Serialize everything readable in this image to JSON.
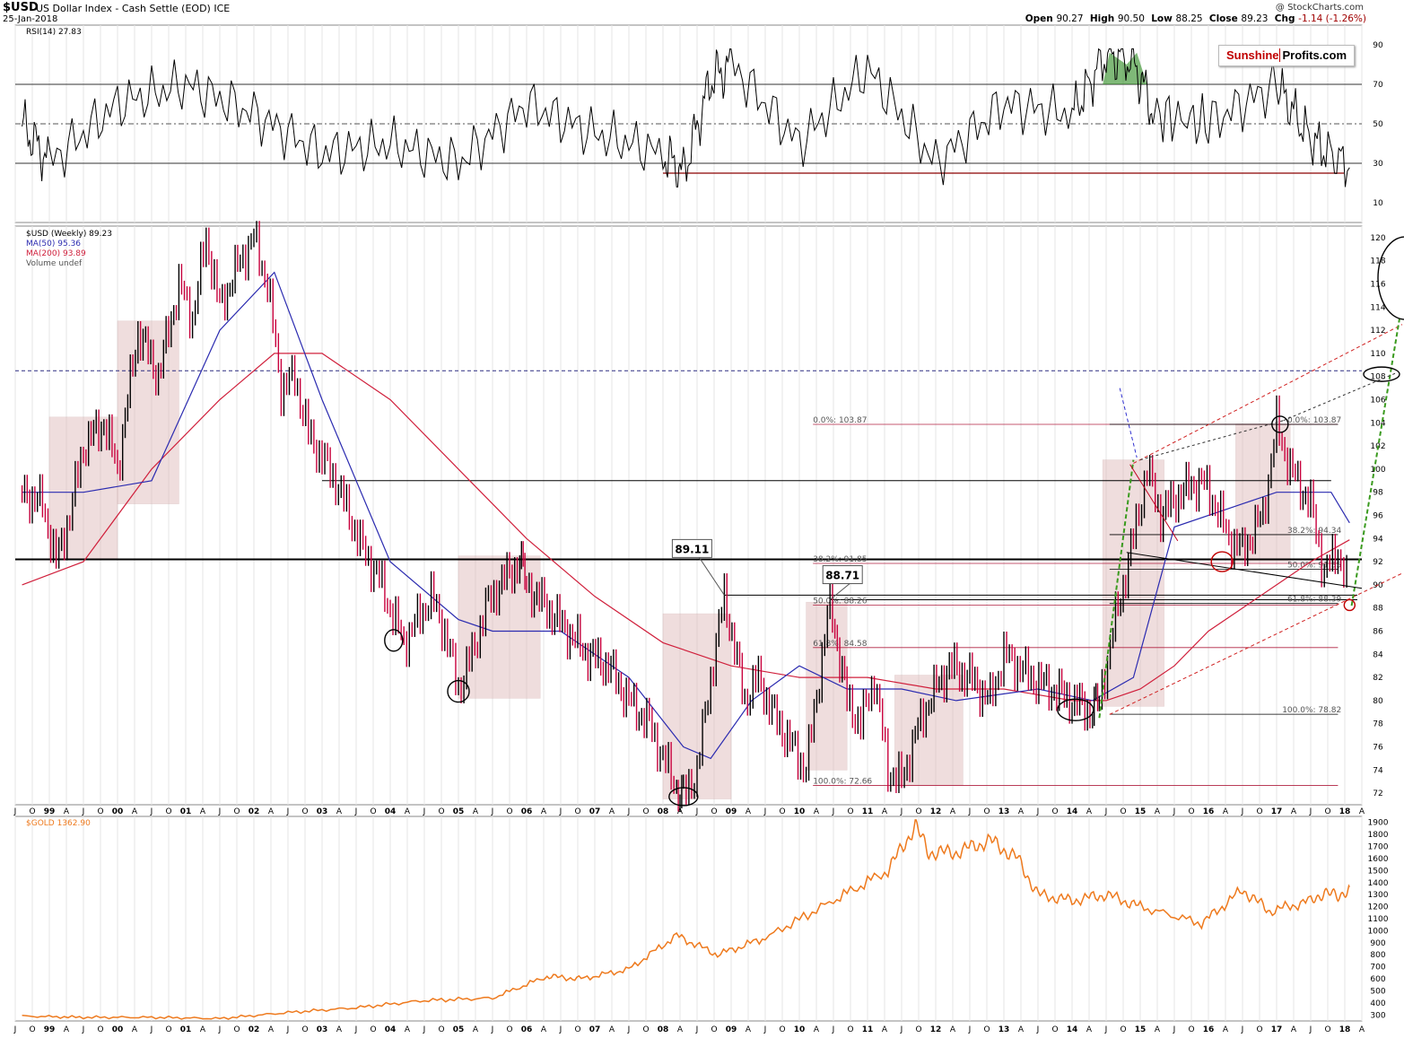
{
  "header": {
    "symbol": "$USD",
    "name": "US Dollar Index - Cash Settle (EOD) ICE",
    "date": "25-Jan-2018",
    "copyright": "@ StockCharts.com",
    "open_label": "Open",
    "open": "90.27",
    "high_label": "High",
    "high": "90.50",
    "low_label": "Low",
    "low": "88.25",
    "close_label": "Close",
    "close": "89.23",
    "chg_label": "Chg",
    "chg": "-1.14 (-1.26%)"
  },
  "logo": {
    "part1": "Sunshine",
    "part2": "Profits.com"
  },
  "colors": {
    "price_up": "#000000",
    "price_down": "#c8003c",
    "ma50": "#2b2bb0",
    "ma200": "#d0203c",
    "gold": "#ee7a1e",
    "box": "#dcb4b4",
    "green": "#2a8a1e"
  },
  "chart_data": [
    {
      "type": "line",
      "title": "RSI(14) 27.83",
      "panel": "rsi",
      "ylim": [
        0,
        100
      ],
      "yticks": [
        10,
        30,
        50,
        70,
        90
      ],
      "guide_lines": [
        70,
        50,
        30
      ],
      "support_line": 25,
      "x_years": [
        1998.6,
        1999.0,
        2000.0,
        2001.0,
        2002.0,
        2003.0,
        2004.0,
        2005.0,
        2006.0,
        2007.0,
        2008.0,
        2008.3,
        2008.7,
        2009.0,
        2010.0,
        2011.0,
        2012.0,
        2013.0,
        2014.0,
        2014.5,
        2014.9,
        2015.2,
        2016.0,
        2017.0,
        2017.5,
        2018.07
      ],
      "values": [
        50,
        30,
        60,
        70,
        55,
        35,
        40,
        30,
        60,
        45,
        35,
        25,
        72,
        80,
        40,
        78,
        30,
        60,
        55,
        85,
        82,
        55,
        50,
        70,
        42,
        27.83
      ]
    },
    {
      "type": "line",
      "title": "$USD (Weekly) 89.23",
      "panel": "price",
      "ylim": [
        71,
        121
      ],
      "yticks": [
        72,
        74,
        76,
        78,
        80,
        82,
        84,
        86,
        88,
        90,
        92,
        94,
        96,
        98,
        100,
        102,
        104,
        106,
        108,
        110,
        112,
        114,
        116,
        118,
        120
      ],
      "series": [
        {
          "name": "$USD (Weekly) 89.23",
          "x_years": [
            1998.6,
            1998.9,
            1999.1,
            1999.3,
            1999.5,
            1999.8,
            2000.0,
            2000.3,
            2000.6,
            2000.9,
            2001.1,
            2001.3,
            2001.5,
            2001.8,
            2002.0,
            2002.2,
            2002.4,
            2002.6,
            2002.8,
            2003.0,
            2003.2,
            2003.4,
            2003.6,
            2003.8,
            2004.0,
            2004.2,
            2004.4,
            2004.6,
            2004.8,
            2005.0,
            2005.2,
            2005.4,
            2005.6,
            2005.9,
            2006.0,
            2006.3,
            2006.6,
            2006.9,
            2007.2,
            2007.5,
            2007.8,
            2008.0,
            2008.2,
            2008.3,
            2008.5,
            2008.7,
            2008.9,
            2009.2,
            2009.4,
            2009.6,
            2009.9,
            2010.1,
            2010.45,
            2010.7,
            2010.9,
            2011.1,
            2011.3,
            2011.5,
            2011.7,
            2011.9,
            2012.2,
            2012.5,
            2012.8,
            2013.0,
            2013.4,
            2013.7,
            2014.0,
            2014.3,
            2014.4,
            2014.6,
            2014.9,
            2015.1,
            2015.3,
            2015.6,
            2015.9,
            2016.1,
            2016.3,
            2016.5,
            2016.8,
            2017.0,
            2017.2,
            2017.5,
            2017.7,
            2017.9,
            2018.07
          ],
          "values": [
            98,
            97,
            92,
            96,
            102,
            104,
            100,
            112,
            108,
            116,
            113,
            120,
            114,
            118,
            120,
            116,
            107,
            108,
            103,
            101,
            99,
            96,
            93,
            91,
            88,
            85,
            87,
            89,
            86,
            81,
            84,
            88,
            90,
            92,
            90,
            88,
            86,
            84,
            83,
            80,
            78,
            75,
            72.66,
            71.5,
            74,
            82,
            89.11,
            80,
            82,
            79,
            76,
            74,
            88.71,
            80,
            78,
            82,
            74,
            73,
            77,
            80,
            83,
            82,
            80,
            84,
            82,
            81,
            80,
            79,
            80,
            86,
            94,
            100,
            96,
            98,
            99,
            97,
            94,
            93,
            96,
            103.87,
            100,
            97,
            91,
            93,
            89.23
          ]
        },
        {
          "name": "MA(50) 95.36",
          "x_years": [
            1998.6,
            1999.5,
            2000.5,
            2001.5,
            2002.3,
            2003.0,
            2004.0,
            2005.0,
            2005.5,
            2006.5,
            2007.5,
            2008.3,
            2008.7,
            2009.3,
            2010.0,
            2010.7,
            2011.5,
            2012.3,
            2013.5,
            2014.3,
            2014.9,
            2015.5,
            2016.5,
            2017.0,
            2017.5,
            2017.8,
            2018.07
          ],
          "values": [
            98,
            98,
            99,
            112,
            117,
            106,
            92,
            87,
            86,
            86,
            82,
            76,
            75,
            80,
            83,
            81,
            81,
            80,
            81,
            80,
            82,
            95,
            97,
            98,
            98,
            98,
            95.36
          ]
        },
        {
          "name": "MA(200) 93.89",
          "x_years": [
            1998.6,
            1999.5,
            2000.5,
            2001.5,
            2002.3,
            2003.0,
            2004.0,
            2005.0,
            2006.0,
            2007.0,
            2008.0,
            2009.0,
            2010.0,
            2011.0,
            2012.0,
            2013.0,
            2014.0,
            2014.5,
            2015.0,
            2015.5,
            2016.0,
            2016.5,
            2017.0,
            2017.5,
            2018.07
          ],
          "values": [
            90,
            92,
            100,
            106,
            110,
            110,
            106,
            100,
            94,
            89,
            85,
            83,
            82,
            82,
            81,
            81,
            80,
            80,
            81,
            83,
            86,
            88,
            90,
            92,
            93.89
          ]
        }
      ],
      "legend": [
        "$USD (Weekly) 89.23",
        "MA(50) 95.36",
        "MA(200) 93.89",
        "Volume undef"
      ],
      "annotations": [
        {
          "text": "89.11",
          "x_year": 2008.9,
          "y": 89.11
        },
        {
          "text": "88.71",
          "x_year": 2010.45,
          "y": 88.71
        }
      ],
      "fib_left": [
        {
          "label": "0.0%: 103.87",
          "y": 103.87
        },
        {
          "label": "38.2%: 91.85",
          "y": 91.85
        },
        {
          "label": "50.0%: 88.26",
          "y": 88.26
        },
        {
          "label": "61.8%: 84.58",
          "y": 84.58
        },
        {
          "label": "100.0%: 72.66",
          "y": 72.66
        }
      ],
      "fib_right": [
        {
          "label": "0.0%: 103.87",
          "y": 103.87
        },
        {
          "label": "38.2%: 94.34",
          "y": 94.34
        },
        {
          "label": "50.0%: 91.35",
          "y": 91.35
        },
        {
          "label": "61.8%: 88.39",
          "y": 88.39
        },
        {
          "label": "100.0%: 78.82",
          "y": 78.82
        }
      ],
      "horizontal_lines": [
        92.2,
        108.5,
        99.0
      ]
    },
    {
      "type": "line",
      "title": "$GOLD 1362.90",
      "panel": "gold",
      "ylim": [
        250,
        1950
      ],
      "yticks": [
        300,
        400,
        500,
        600,
        700,
        800,
        900,
        1000,
        1100,
        1200,
        1300,
        1400,
        1500,
        1600,
        1700,
        1800,
        1900
      ],
      "x_years": [
        1998.6,
        1999.5,
        2000.5,
        2001.5,
        2002.5,
        2003.5,
        2004.5,
        2005.5,
        2006.3,
        2006.8,
        2007.5,
        2008.2,
        2008.8,
        2009.5,
        2010.5,
        2011.3,
        2011.7,
        2011.9,
        2012.3,
        2012.8,
        2013.2,
        2013.5,
        2014.0,
        2014.5,
        2015.0,
        2015.9,
        2016.5,
        2016.9,
        2017.5,
        2017.7,
        2017.9,
        2018.07
      ],
      "values": [
        290,
        280,
        280,
        270,
        320,
        360,
        420,
        440,
        620,
        600,
        680,
        960,
        800,
        940,
        1250,
        1500,
        1870,
        1650,
        1650,
        1750,
        1600,
        1300,
        1250,
        1300,
        1200,
        1060,
        1340,
        1160,
        1250,
        1320,
        1280,
        1362.9
      ]
    }
  ],
  "x_axis": {
    "labels": [
      "A",
      "J",
      "O",
      "99",
      "A",
      "J",
      "O",
      "00",
      "A",
      "J",
      "O",
      "01",
      "A",
      "J",
      "O",
      "02",
      "A",
      "J",
      "O",
      "03",
      "A",
      "J",
      "O",
      "04",
      "A",
      "J",
      "O",
      "05",
      "A",
      "J",
      "O",
      "06",
      "A",
      "J",
      "O",
      "07",
      "A",
      "J",
      "O",
      "08",
      "A",
      "J",
      "O",
      "09",
      "A",
      "J",
      "O",
      "10",
      "A",
      "J",
      "O",
      "11",
      "A",
      "J",
      "O",
      "12",
      "A",
      "J",
      "O",
      "13",
      "A",
      "J",
      "O",
      "14",
      "A",
      "J",
      "O",
      "15",
      "A",
      "J",
      "O",
      "16",
      "A",
      "J",
      "O",
      "17",
      "A",
      "J",
      "O",
      "18",
      "A"
    ]
  }
}
